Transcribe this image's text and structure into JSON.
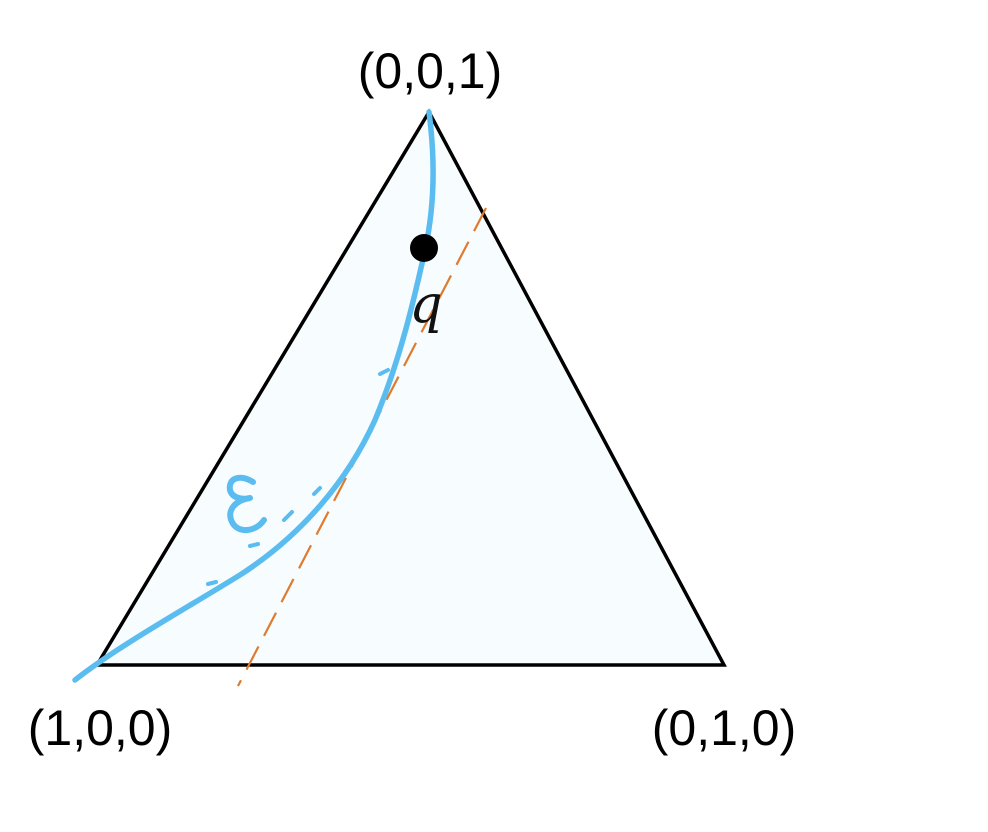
{
  "diagram": {
    "vertex_labels": {
      "top": "(0,0,1)",
      "bottom_left": "(1,0,0)",
      "bottom_right": "(0,1,0)"
    },
    "point_label": "q",
    "curve_label": "ε",
    "colors": {
      "triangle_fill": "#f7fcfe",
      "triangle_stroke": "#000000",
      "curve": "#5bbcf0",
      "dashed_line": "#e07a2e",
      "point": "#000000"
    }
  }
}
